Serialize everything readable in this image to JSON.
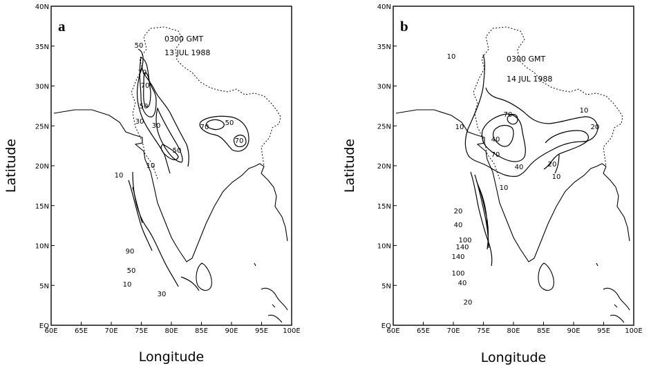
{
  "panels": [
    {
      "letter": "a",
      "time_label": "0300 GMT",
      "date_label": "13 JUL 1988",
      "xlabel": "Longitude",
      "ylabel": "Latitude",
      "contour_labels": [
        "50",
        "70",
        "70",
        "50",
        "30",
        "30",
        "10",
        "70",
        "50",
        "70",
        "50",
        "10",
        "90",
        "50",
        "10",
        "30"
      ]
    },
    {
      "letter": "b",
      "time_label": "0300 GMT",
      "date_label": "14 JUL 1988",
      "xlabel": "Longitude",
      "ylabel": "Latitude",
      "contour_labels": [
        "10",
        "70",
        "40",
        "10",
        "70",
        "40",
        "10",
        "20",
        "20",
        "10",
        "10",
        "20",
        "40",
        "100",
        "140",
        "140",
        "100",
        "40",
        "20"
      ]
    }
  ],
  "axes": {
    "x_ticks": [
      "60E",
      "65E",
      "70E",
      "75E",
      "80E",
      "85E",
      "90E",
      "95E",
      "100E"
    ],
    "y_ticks": [
      "EQ",
      "5N",
      "10N",
      "15N",
      "20N",
      "25N",
      "30N",
      "35N",
      "40N"
    ]
  }
}
